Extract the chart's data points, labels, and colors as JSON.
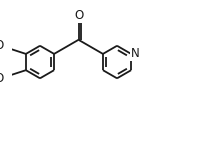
{
  "bg_color": "#ffffff",
  "line_color": "#1a1a1a",
  "lw": 1.3,
  "figsize": [
    1.99,
    1.41
  ],
  "dpi": 100,
  "font_size": 8.5,
  "xlim": [
    -1.0,
    5.5
  ],
  "ylim": [
    -2.8,
    2.2
  ]
}
